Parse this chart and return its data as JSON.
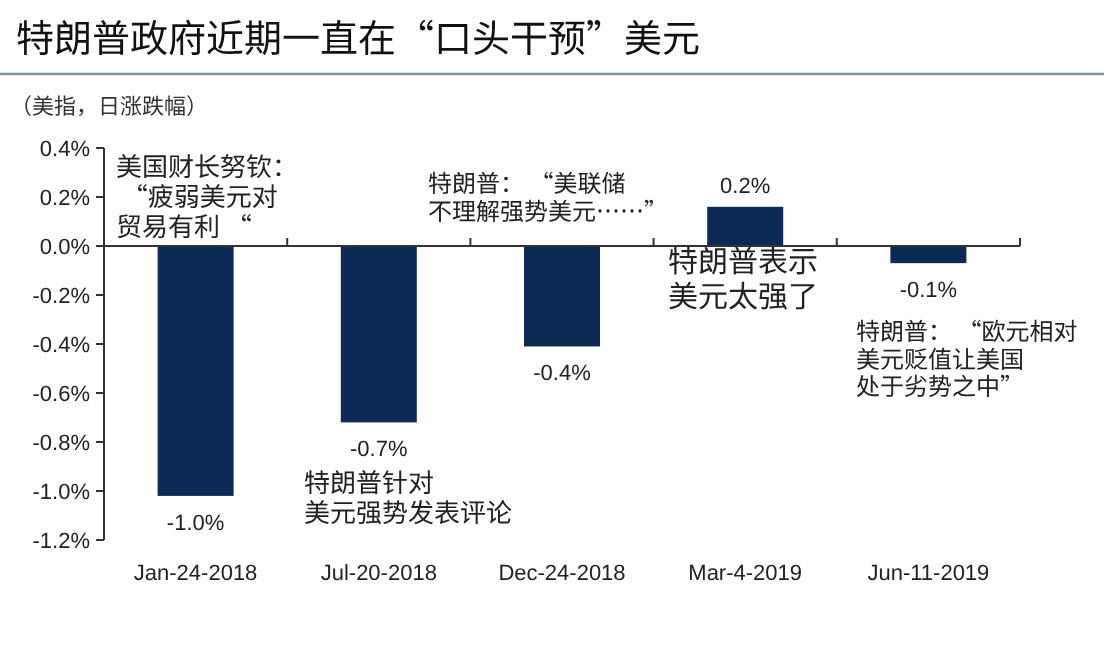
{
  "chart_data": {
    "type": "bar",
    "title": "特朗普政府近期一直在“口头干预”美元",
    "ylabel": "（美指，日涨跌幅）",
    "categories": [
      "Jan-24-2018",
      "Jul-20-2018",
      "Dec-24-2018",
      "Mar-4-2019",
      "Jun-11-2019"
    ],
    "values": [
      -1.02,
      -0.72,
      -0.41,
      0.16,
      -0.07
    ],
    "value_labels": [
      "-1.0%",
      "-0.7%",
      "-0.4%",
      "0.2%",
      "-0.1%"
    ],
    "color": "#0b2a55",
    "ylim": [
      -1.2,
      0.4
    ],
    "yticks": [
      {
        "value": -1.2,
        "label": "-1.2%"
      },
      {
        "value": -1.0,
        "label": "-1.0%"
      },
      {
        "value": -0.8,
        "label": "-0.8%"
      },
      {
        "value": -0.6,
        "label": "-0.6%"
      },
      {
        "value": -0.4,
        "label": "-0.4%"
      },
      {
        "value": -0.2,
        "label": "-0.2%"
      },
      {
        "value": 0.0,
        "label": "0.0%"
      },
      {
        "value": 0.2,
        "label": "0.2%"
      },
      {
        "value": 0.4,
        "label": "0.4%"
      }
    ],
    "annotations": [
      "美国财长努钦： “疲弱美元对贸易有利 “",
      "特朗普：  “美联储不理解强势美元……”",
      "特朗普表示美元太强了",
      "特朗普：  “欧元相对美元贬值让美国处于劣势之中”",
      "特朗普针对美元强势发表评论"
    ]
  }
}
